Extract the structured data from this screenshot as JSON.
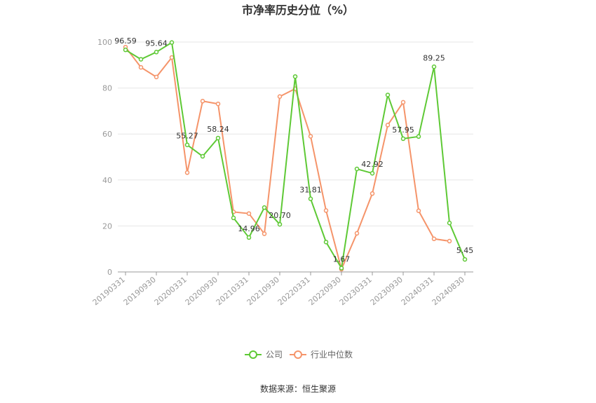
{
  "chart_data": {
    "type": "line",
    "title": "市净率历史分位（%）",
    "source": "数据来源：恒生聚源",
    "ylim": [
      0,
      100
    ],
    "yticks": [
      "0",
      "20",
      "40",
      "60",
      "80",
      "100"
    ],
    "x": [
      "20190331",
      "20190630",
      "20190930",
      "20191231",
      "20200331",
      "20200630",
      "20200930",
      "20201231",
      "20210331",
      "20210630",
      "20210930",
      "20211231",
      "20220331",
      "20220630",
      "20220930",
      "20221231",
      "20230331",
      "20230630",
      "20230930",
      "20231231",
      "20240331",
      "20240630",
      "20240830"
    ],
    "xticks_shown": [
      "20190331",
      "20190930",
      "20200331",
      "20200930",
      "20210331",
      "20210930",
      "20220331",
      "20220930",
      "20230331",
      "20230930",
      "20240331",
      "20240830"
    ],
    "series": [
      {
        "name": "公司",
        "color": "#5ec935",
        "values": [
          96.59,
          92.5,
          95.64,
          99.8,
          55.27,
          50.3,
          58.24,
          23.5,
          14.96,
          28.0,
          20.7,
          85.0,
          31.81,
          13.0,
          1.67,
          44.8,
          42.92,
          77.0,
          57.95,
          58.9,
          89.25,
          21.3,
          5.45
        ],
        "labels": [
          "96.59",
          null,
          "95.64",
          null,
          "55.27",
          null,
          "58.24",
          null,
          "14.96",
          null,
          "20.70",
          null,
          "31.81",
          null,
          "1.67",
          null,
          "42.92",
          null,
          "57.95",
          null,
          "89.25",
          null,
          "5.45"
        ]
      },
      {
        "name": "行业中位数",
        "color": "#f5946a",
        "values": [
          97.8,
          89.0,
          84.8,
          93.3,
          43.2,
          74.3,
          73.1,
          26.1,
          25.4,
          16.6,
          76.3,
          79.7,
          59.0,
          26.7,
          1.2,
          16.8,
          34.1,
          63.9,
          73.8,
          26.6,
          14.4,
          13.4,
          null
        ]
      }
    ],
    "legend_position": "bottom-center"
  }
}
